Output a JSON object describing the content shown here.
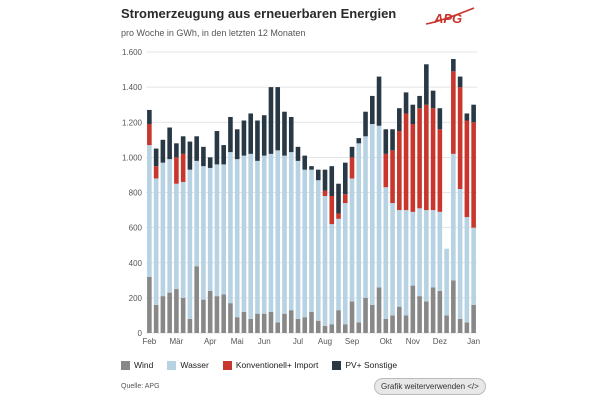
{
  "header": {
    "title": "Stromerzeugung aus erneuerbaren Energien",
    "subtitle": "pro Woche in GWh, in den letzten 12 Monaten",
    "logo_text": "APG"
  },
  "footer": {
    "source": "Quelle: APG",
    "reuse_label": "Grafik weiterverwenden </>"
  },
  "colors": {
    "wind": "#888888",
    "wasser": "#b7d2e2",
    "konventionell": "#c8362d",
    "pv": "#283845",
    "grid": "#dcdcdc",
    "axis_text": "#555555",
    "logo": "#c8362d"
  },
  "chart_data": {
    "type": "bar",
    "stacked": true,
    "title": "Stromerzeugung aus erneuerbaren Energien",
    "ylabel": "GWh",
    "ylim": [
      0,
      1600
    ],
    "yticks": [
      0,
      200,
      400,
      600,
      800,
      "1.000",
      "1.200",
      "1.400",
      "1.600"
    ],
    "ytick_values": [
      0,
      200,
      400,
      600,
      800,
      1000,
      1200,
      1400,
      1600
    ],
    "month_labels": [
      {
        "label": "Feb",
        "week_index": 0
      },
      {
        "label": "Mär",
        "week_index": 4
      },
      {
        "label": "Apr",
        "week_index": 9
      },
      {
        "label": "Mai",
        "week_index": 13
      },
      {
        "label": "Jun",
        "week_index": 17
      },
      {
        "label": "Jul",
        "week_index": 22
      },
      {
        "label": "Aug",
        "week_index": 26
      },
      {
        "label": "Sep",
        "week_index": 30
      },
      {
        "label": "Okt",
        "week_index": 35
      },
      {
        "label": "Nov",
        "week_index": 39
      },
      {
        "label": "Dez",
        "week_index": 43
      },
      {
        "label": "Jan",
        "week_index": 48
      }
    ],
    "series": [
      {
        "name": "Wind",
        "key": "wind",
        "values": [
          320,
          160,
          210,
          230,
          250,
          200,
          80,
          380,
          190,
          240,
          210,
          220,
          170,
          90,
          120,
          80,
          110,
          110,
          120,
          60,
          110,
          130,
          80,
          90,
          120,
          70,
          40,
          50,
          130,
          50,
          180,
          60,
          200,
          160,
          260,
          80,
          100,
          150,
          100,
          270,
          210,
          180,
          260,
          240,
          100,
          300,
          80,
          60,
          160
        ]
      },
      {
        "name": "Wasser",
        "key": "wasser",
        "values": [
          750,
          720,
          760,
          760,
          600,
          660,
          850,
          600,
          760,
          700,
          750,
          740,
          860,
          900,
          890,
          940,
          870,
          900,
          900,
          980,
          900,
          900,
          900,
          840,
          810,
          800,
          740,
          570,
          520,
          690,
          700,
          1020,
          920,
          1030,
          920,
          750,
          640,
          550,
          600,
          420,
          500,
          520,
          440,
          450,
          380,
          720,
          740,
          600,
          440
        ]
      },
      {
        "name": "Konventionell+ Import",
        "key": "konventionell",
        "values": [
          120,
          70,
          0,
          0,
          150,
          160,
          0,
          0,
          0,
          0,
          0,
          0,
          0,
          0,
          0,
          0,
          0,
          0,
          0,
          0,
          0,
          0,
          0,
          0,
          0,
          0,
          30,
          160,
          30,
          50,
          120,
          0,
          0,
          0,
          0,
          190,
          300,
          450,
          550,
          500,
          570,
          600,
          580,
          470,
          0,
          470,
          580,
          550,
          600
        ]
      },
      {
        "name": "PV+ Sonstige",
        "key": "pv",
        "values": [
          80,
          100,
          130,
          180,
          80,
          100,
          160,
          140,
          110,
          60,
          190,
          110,
          200,
          170,
          200,
          230,
          230,
          230,
          380,
          360,
          250,
          200,
          80,
          80,
          20,
          60,
          120,
          170,
          170,
          180,
          60,
          30,
          140,
          160,
          280,
          140,
          120,
          130,
          120,
          110,
          70,
          230,
          100,
          120,
          0,
          70,
          60,
          40,
          100
        ]
      }
    ]
  }
}
